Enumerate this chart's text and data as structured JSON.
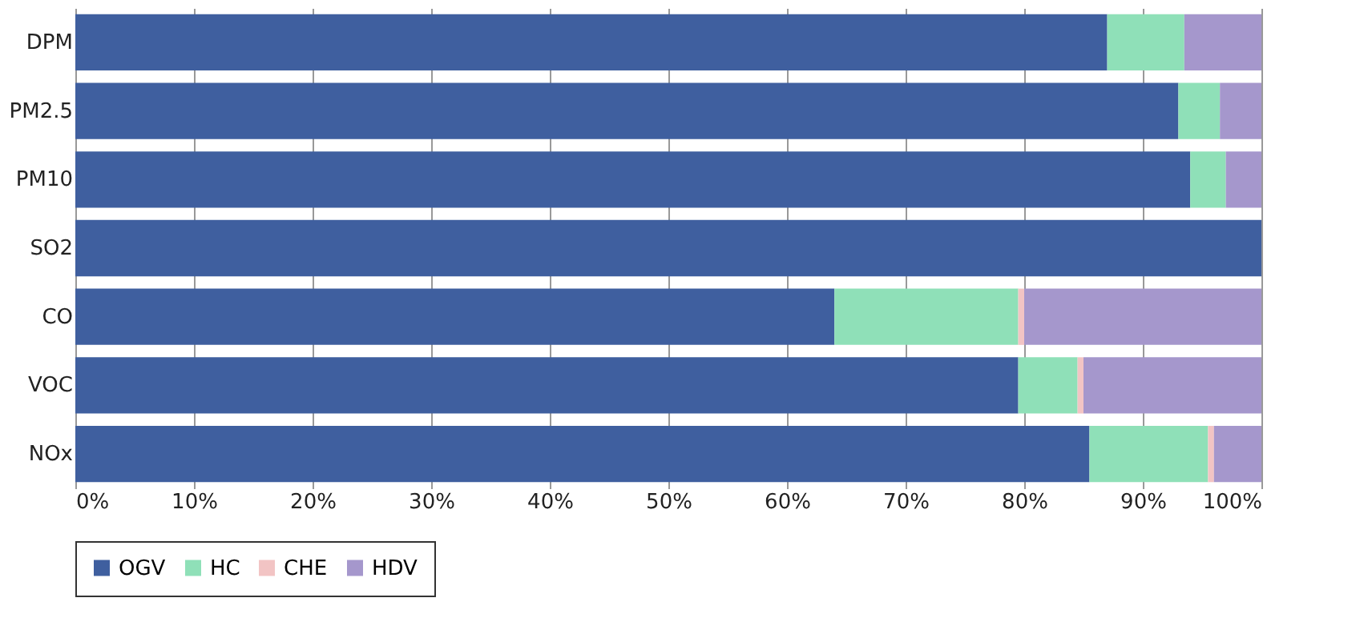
{
  "chart_data": {
    "type": "bar",
    "orientation": "horizontal",
    "stacked": true,
    "categories": [
      "DPM",
      "PM2.5",
      "PM10",
      "SO2",
      "CO",
      "VOC",
      "NOx"
    ],
    "series": [
      {
        "name": "OGV",
        "color": "#3f5f9f",
        "values": [
          87,
          93,
          94,
          100,
          64,
          79.5,
          85.5
        ]
      },
      {
        "name": "HC",
        "color": "#8fe0b8",
        "values": [
          6.5,
          3.5,
          3,
          0,
          15.5,
          5,
          10
        ]
      },
      {
        "name": "CHE",
        "color": "#f2c4c4",
        "values": [
          0,
          0,
          0,
          0,
          0.5,
          0.5,
          0.5
        ]
      },
      {
        "name": "HDV",
        "color": "#a597cc",
        "values": [
          6.5,
          3.5,
          3,
          0,
          20,
          15,
          4
        ]
      }
    ],
    "xlim": [
      0,
      100
    ],
    "xticks": [
      {
        "value": 0,
        "label": "0%"
      },
      {
        "value": 10,
        "label": "10%"
      },
      {
        "value": 20,
        "label": "20%"
      },
      {
        "value": 30,
        "label": "30%"
      },
      {
        "value": 40,
        "label": "40%"
      },
      {
        "value": 50,
        "label": "50%"
      },
      {
        "value": 60,
        "label": "60%"
      },
      {
        "value": 70,
        "label": "70%"
      },
      {
        "value": 80,
        "label": "80%"
      },
      {
        "value": 90,
        "label": "90%"
      },
      {
        "value": 100,
        "label": "100%"
      }
    ],
    "grid": "x",
    "legend": "bottom"
  }
}
